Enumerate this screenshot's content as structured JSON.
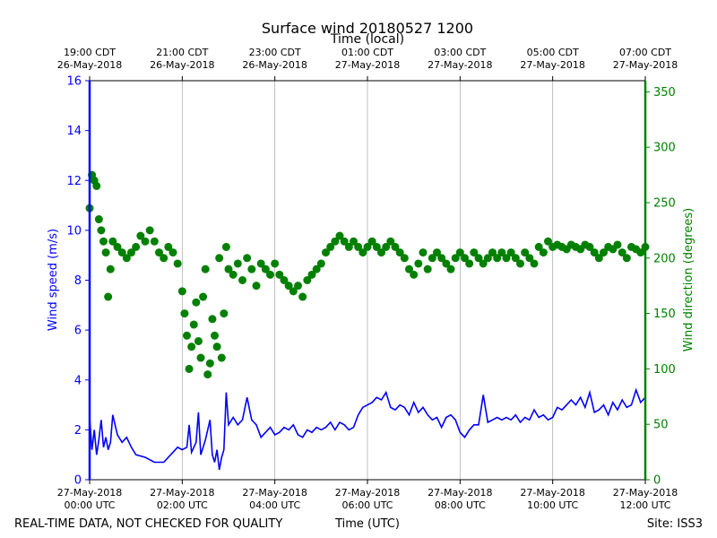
{
  "chart_data": {
    "type": "line+scatter",
    "title": "Surface wind 20180527 1200",
    "top_axis_label": "Time (local)",
    "top_ticks": [
      {
        "h": 0,
        "line1": "19:00 CDT",
        "line2": "26-May-2018"
      },
      {
        "h": 2,
        "line1": "21:00 CDT",
        "line2": "26-May-2018"
      },
      {
        "h": 4,
        "line1": "23:00 CDT",
        "line2": "26-May-2018"
      },
      {
        "h": 6,
        "line1": "01:00 CDT",
        "line2": "27-May-2018"
      },
      {
        "h": 8,
        "line1": "03:00 CDT",
        "line2": "27-May-2018"
      },
      {
        "h": 10,
        "line1": "05:00 CDT",
        "line2": "27-May-2018"
      },
      {
        "h": 12,
        "line1": "07:00 CDT",
        "line2": "27-May-2018"
      }
    ],
    "bottom_ticks": [
      {
        "h": 0,
        "line1": "27-May-2018",
        "line2": "00:00 UTC"
      },
      {
        "h": 2,
        "line1": "27-May-2018",
        "line2": "02:00 UTC"
      },
      {
        "h": 4,
        "line1": "27-May-2018",
        "line2": "04:00 UTC"
      },
      {
        "h": 6,
        "line1": "27-May-2018",
        "line2": "06:00 UTC"
      },
      {
        "h": 8,
        "line1": "27-May-2018",
        "line2": "08:00 UTC"
      },
      {
        "h": 10,
        "line1": "27-May-2018",
        "line2": "10:00 UTC"
      },
      {
        "h": 12,
        "line1": "27-May-2018",
        "line2": "12:00 UTC"
      }
    ],
    "xlabel": "Time (UTC)",
    "xlim_hours": [
      0,
      12
    ],
    "ylabel_left": "Wind speed (m/s)",
    "ylim_left": [
      0,
      16
    ],
    "yticks_left": [
      0,
      2,
      4,
      6,
      8,
      10,
      12,
      14,
      16
    ],
    "ylabel_right": "Wind direction (degrees)",
    "ylim_right": [
      0,
      360
    ],
    "yticks_right": [
      0,
      50,
      100,
      150,
      200,
      250,
      300,
      350
    ],
    "grid": "vertical",
    "colors": {
      "speed": "#0000ff",
      "direction": "#008000",
      "text": "#000000"
    },
    "series": [
      {
        "name": "Wind speed",
        "axis": "left",
        "style": "line",
        "points": [
          [
            0,
            2.5
          ],
          [
            0.05,
            1.2
          ],
          [
            0.1,
            2.0
          ],
          [
            0.15,
            1.0
          ],
          [
            0.2,
            1.6
          ],
          [
            0.25,
            2.4
          ],
          [
            0.3,
            1.3
          ],
          [
            0.35,
            1.7
          ],
          [
            0.4,
            1.2
          ],
          [
            0.45,
            1.5
          ],
          [
            0.5,
            2.6
          ],
          [
            0.55,
            2.2
          ],
          [
            0.6,
            1.8
          ],
          [
            0.7,
            1.5
          ],
          [
            0.8,
            1.7
          ],
          [
            0.9,
            1.3
          ],
          [
            1.0,
            1.0
          ],
          [
            1.2,
            0.9
          ],
          [
            1.4,
            0.7
          ],
          [
            1.6,
            0.7
          ],
          [
            1.8,
            1.1
          ],
          [
            1.9,
            1.3
          ],
          [
            2.0,
            1.2
          ],
          [
            2.1,
            1.3
          ],
          [
            2.15,
            2.2
          ],
          [
            2.2,
            1.1
          ],
          [
            2.3,
            1.5
          ],
          [
            2.35,
            2.7
          ],
          [
            2.4,
            1.0
          ],
          [
            2.5,
            1.6
          ],
          [
            2.6,
            2.4
          ],
          [
            2.65,
            1.0
          ],
          [
            2.7,
            0.7
          ],
          [
            2.75,
            1.2
          ],
          [
            2.8,
            0.4
          ],
          [
            2.85,
            0.9
          ],
          [
            2.9,
            1.2
          ],
          [
            2.95,
            3.5
          ],
          [
            3.0,
            2.2
          ],
          [
            3.1,
            2.5
          ],
          [
            3.2,
            2.2
          ],
          [
            3.3,
            2.4
          ],
          [
            3.4,
            3.3
          ],
          [
            3.5,
            2.4
          ],
          [
            3.6,
            2.2
          ],
          [
            3.7,
            1.7
          ],
          [
            3.8,
            1.9
          ],
          [
            3.9,
            2.1
          ],
          [
            4.0,
            1.8
          ],
          [
            4.1,
            1.9
          ],
          [
            4.2,
            2.1
          ],
          [
            4.3,
            2.0
          ],
          [
            4.4,
            2.2
          ],
          [
            4.5,
            1.8
          ],
          [
            4.6,
            1.7
          ],
          [
            4.7,
            2.0
          ],
          [
            4.8,
            1.9
          ],
          [
            4.9,
            2.1
          ],
          [
            5.0,
            2.0
          ],
          [
            5.1,
            2.1
          ],
          [
            5.2,
            2.3
          ],
          [
            5.3,
            2.0
          ],
          [
            5.4,
            2.3
          ],
          [
            5.5,
            2.2
          ],
          [
            5.6,
            2.0
          ],
          [
            5.7,
            2.1
          ],
          [
            5.8,
            2.6
          ],
          [
            5.9,
            2.9
          ],
          [
            6.0,
            3.0
          ],
          [
            6.1,
            3.1
          ],
          [
            6.2,
            3.3
          ],
          [
            6.3,
            3.2
          ],
          [
            6.4,
            3.5
          ],
          [
            6.5,
            2.9
          ],
          [
            6.6,
            2.8
          ],
          [
            6.7,
            3.0
          ],
          [
            6.8,
            2.9
          ],
          [
            6.9,
            2.6
          ],
          [
            7.0,
            3.1
          ],
          [
            7.1,
            2.7
          ],
          [
            7.2,
            2.9
          ],
          [
            7.3,
            2.6
          ],
          [
            7.4,
            2.4
          ],
          [
            7.5,
            2.5
          ],
          [
            7.6,
            2.1
          ],
          [
            7.7,
            2.5
          ],
          [
            7.8,
            2.6
          ],
          [
            7.9,
            2.4
          ],
          [
            8.0,
            1.9
          ],
          [
            8.1,
            1.7
          ],
          [
            8.2,
            2.0
          ],
          [
            8.3,
            2.2
          ],
          [
            8.4,
            2.2
          ],
          [
            8.5,
            3.4
          ],
          [
            8.6,
            2.3
          ],
          [
            8.7,
            2.4
          ],
          [
            8.8,
            2.5
          ],
          [
            8.9,
            2.4
          ],
          [
            9.0,
            2.5
          ],
          [
            9.1,
            2.4
          ],
          [
            9.2,
            2.6
          ],
          [
            9.3,
            2.3
          ],
          [
            9.4,
            2.5
          ],
          [
            9.5,
            2.4
          ],
          [
            9.6,
            2.8
          ],
          [
            9.7,
            2.5
          ],
          [
            9.8,
            2.6
          ],
          [
            9.9,
            2.4
          ],
          [
            10.0,
            2.5
          ],
          [
            10.1,
            2.9
          ],
          [
            10.2,
            2.8
          ],
          [
            10.3,
            3.0
          ],
          [
            10.4,
            3.2
          ],
          [
            10.5,
            3.0
          ],
          [
            10.6,
            3.3
          ],
          [
            10.7,
            2.9
          ],
          [
            10.8,
            3.5
          ],
          [
            10.9,
            2.7
          ],
          [
            11.0,
            2.8
          ],
          [
            11.1,
            3.0
          ],
          [
            11.2,
            2.6
          ],
          [
            11.3,
            3.1
          ],
          [
            11.4,
            2.8
          ],
          [
            11.5,
            3.2
          ],
          [
            11.6,
            2.9
          ],
          [
            11.7,
            3.0
          ],
          [
            11.8,
            3.6
          ],
          [
            11.9,
            3.1
          ],
          [
            12.0,
            3.3
          ]
        ]
      },
      {
        "name": "Wind direction",
        "axis": "right",
        "style": "scatter",
        "points": [
          [
            0,
            245
          ],
          [
            0.05,
            275
          ],
          [
            0.1,
            270
          ],
          [
            0.15,
            265
          ],
          [
            0.2,
            235
          ],
          [
            0.25,
            225
          ],
          [
            0.3,
            215
          ],
          [
            0.35,
            205
          ],
          [
            0.4,
            165
          ],
          [
            0.45,
            190
          ],
          [
            0.5,
            215
          ],
          [
            0.6,
            210
          ],
          [
            0.7,
            205
          ],
          [
            0.8,
            200
          ],
          [
            0.9,
            205
          ],
          [
            1.0,
            210
          ],
          [
            1.1,
            220
          ],
          [
            1.2,
            215
          ],
          [
            1.3,
            225
          ],
          [
            1.4,
            215
          ],
          [
            1.5,
            205
          ],
          [
            1.6,
            200
          ],
          [
            1.7,
            210
          ],
          [
            1.8,
            205
          ],
          [
            1.9,
            195
          ],
          [
            2.0,
            170
          ],
          [
            2.05,
            150
          ],
          [
            2.1,
            130
          ],
          [
            2.15,
            100
          ],
          [
            2.2,
            120
          ],
          [
            2.25,
            140
          ],
          [
            2.3,
            160
          ],
          [
            2.35,
            125
          ],
          [
            2.4,
            110
          ],
          [
            2.45,
            165
          ],
          [
            2.5,
            190
          ],
          [
            2.55,
            95
          ],
          [
            2.6,
            105
          ],
          [
            2.65,
            145
          ],
          [
            2.7,
            130
          ],
          [
            2.75,
            120
          ],
          [
            2.8,
            200
          ],
          [
            2.85,
            110
          ],
          [
            2.9,
            150
          ],
          [
            2.95,
            210
          ],
          [
            3.0,
            190
          ],
          [
            3.1,
            185
          ],
          [
            3.2,
            195
          ],
          [
            3.3,
            180
          ],
          [
            3.4,
            200
          ],
          [
            3.5,
            190
          ],
          [
            3.6,
            175
          ],
          [
            3.7,
            195
          ],
          [
            3.8,
            190
          ],
          [
            3.9,
            185
          ],
          [
            4.0,
            195
          ],
          [
            4.1,
            185
          ],
          [
            4.2,
            180
          ],
          [
            4.3,
            175
          ],
          [
            4.4,
            170
          ],
          [
            4.5,
            175
          ],
          [
            4.6,
            165
          ],
          [
            4.7,
            180
          ],
          [
            4.8,
            185
          ],
          [
            4.9,
            190
          ],
          [
            5.0,
            195
          ],
          [
            5.1,
            205
          ],
          [
            5.2,
            210
          ],
          [
            5.3,
            215
          ],
          [
            5.4,
            220
          ],
          [
            5.5,
            215
          ],
          [
            5.6,
            210
          ],
          [
            5.7,
            215
          ],
          [
            5.8,
            210
          ],
          [
            5.9,
            205
          ],
          [
            6.0,
            210
          ],
          [
            6.1,
            215
          ],
          [
            6.2,
            210
          ],
          [
            6.3,
            205
          ],
          [
            6.4,
            210
          ],
          [
            6.5,
            215
          ],
          [
            6.6,
            210
          ],
          [
            6.7,
            205
          ],
          [
            6.8,
            200
          ],
          [
            6.9,
            190
          ],
          [
            7.0,
            185
          ],
          [
            7.1,
            195
          ],
          [
            7.2,
            205
          ],
          [
            7.3,
            190
          ],
          [
            7.4,
            200
          ],
          [
            7.5,
            205
          ],
          [
            7.6,
            200
          ],
          [
            7.7,
            195
          ],
          [
            7.8,
            190
          ],
          [
            7.9,
            200
          ],
          [
            8.0,
            205
          ],
          [
            8.1,
            200
          ],
          [
            8.2,
            195
          ],
          [
            8.3,
            205
          ],
          [
            8.4,
            200
          ],
          [
            8.5,
            195
          ],
          [
            8.6,
            200
          ],
          [
            8.7,
            205
          ],
          [
            8.8,
            200
          ],
          [
            8.9,
            205
          ],
          [
            9.0,
            200
          ],
          [
            9.1,
            205
          ],
          [
            9.2,
            200
          ],
          [
            9.3,
            195
          ],
          [
            9.4,
            205
          ],
          [
            9.5,
            200
          ],
          [
            9.6,
            195
          ],
          [
            9.7,
            210
          ],
          [
            9.8,
            205
          ],
          [
            9.9,
            215
          ],
          [
            10.0,
            210
          ],
          [
            10.1,
            212
          ],
          [
            10.2,
            210
          ],
          [
            10.3,
            208
          ],
          [
            10.4,
            212
          ],
          [
            10.5,
            210
          ],
          [
            10.6,
            208
          ],
          [
            10.7,
            212
          ],
          [
            10.8,
            210
          ],
          [
            10.9,
            205
          ],
          [
            11.0,
            200
          ],
          [
            11.1,
            205
          ],
          [
            11.2,
            210
          ],
          [
            11.3,
            208
          ],
          [
            11.4,
            212
          ],
          [
            11.5,
            205
          ],
          [
            11.6,
            200
          ],
          [
            11.7,
            210
          ],
          [
            11.8,
            208
          ],
          [
            11.9,
            205
          ],
          [
            12.0,
            210
          ]
        ]
      }
    ]
  },
  "footer": {
    "disclaimer": "REAL-TIME DATA, NOT CHECKED FOR QUALITY",
    "site": "Site: ISS3"
  }
}
